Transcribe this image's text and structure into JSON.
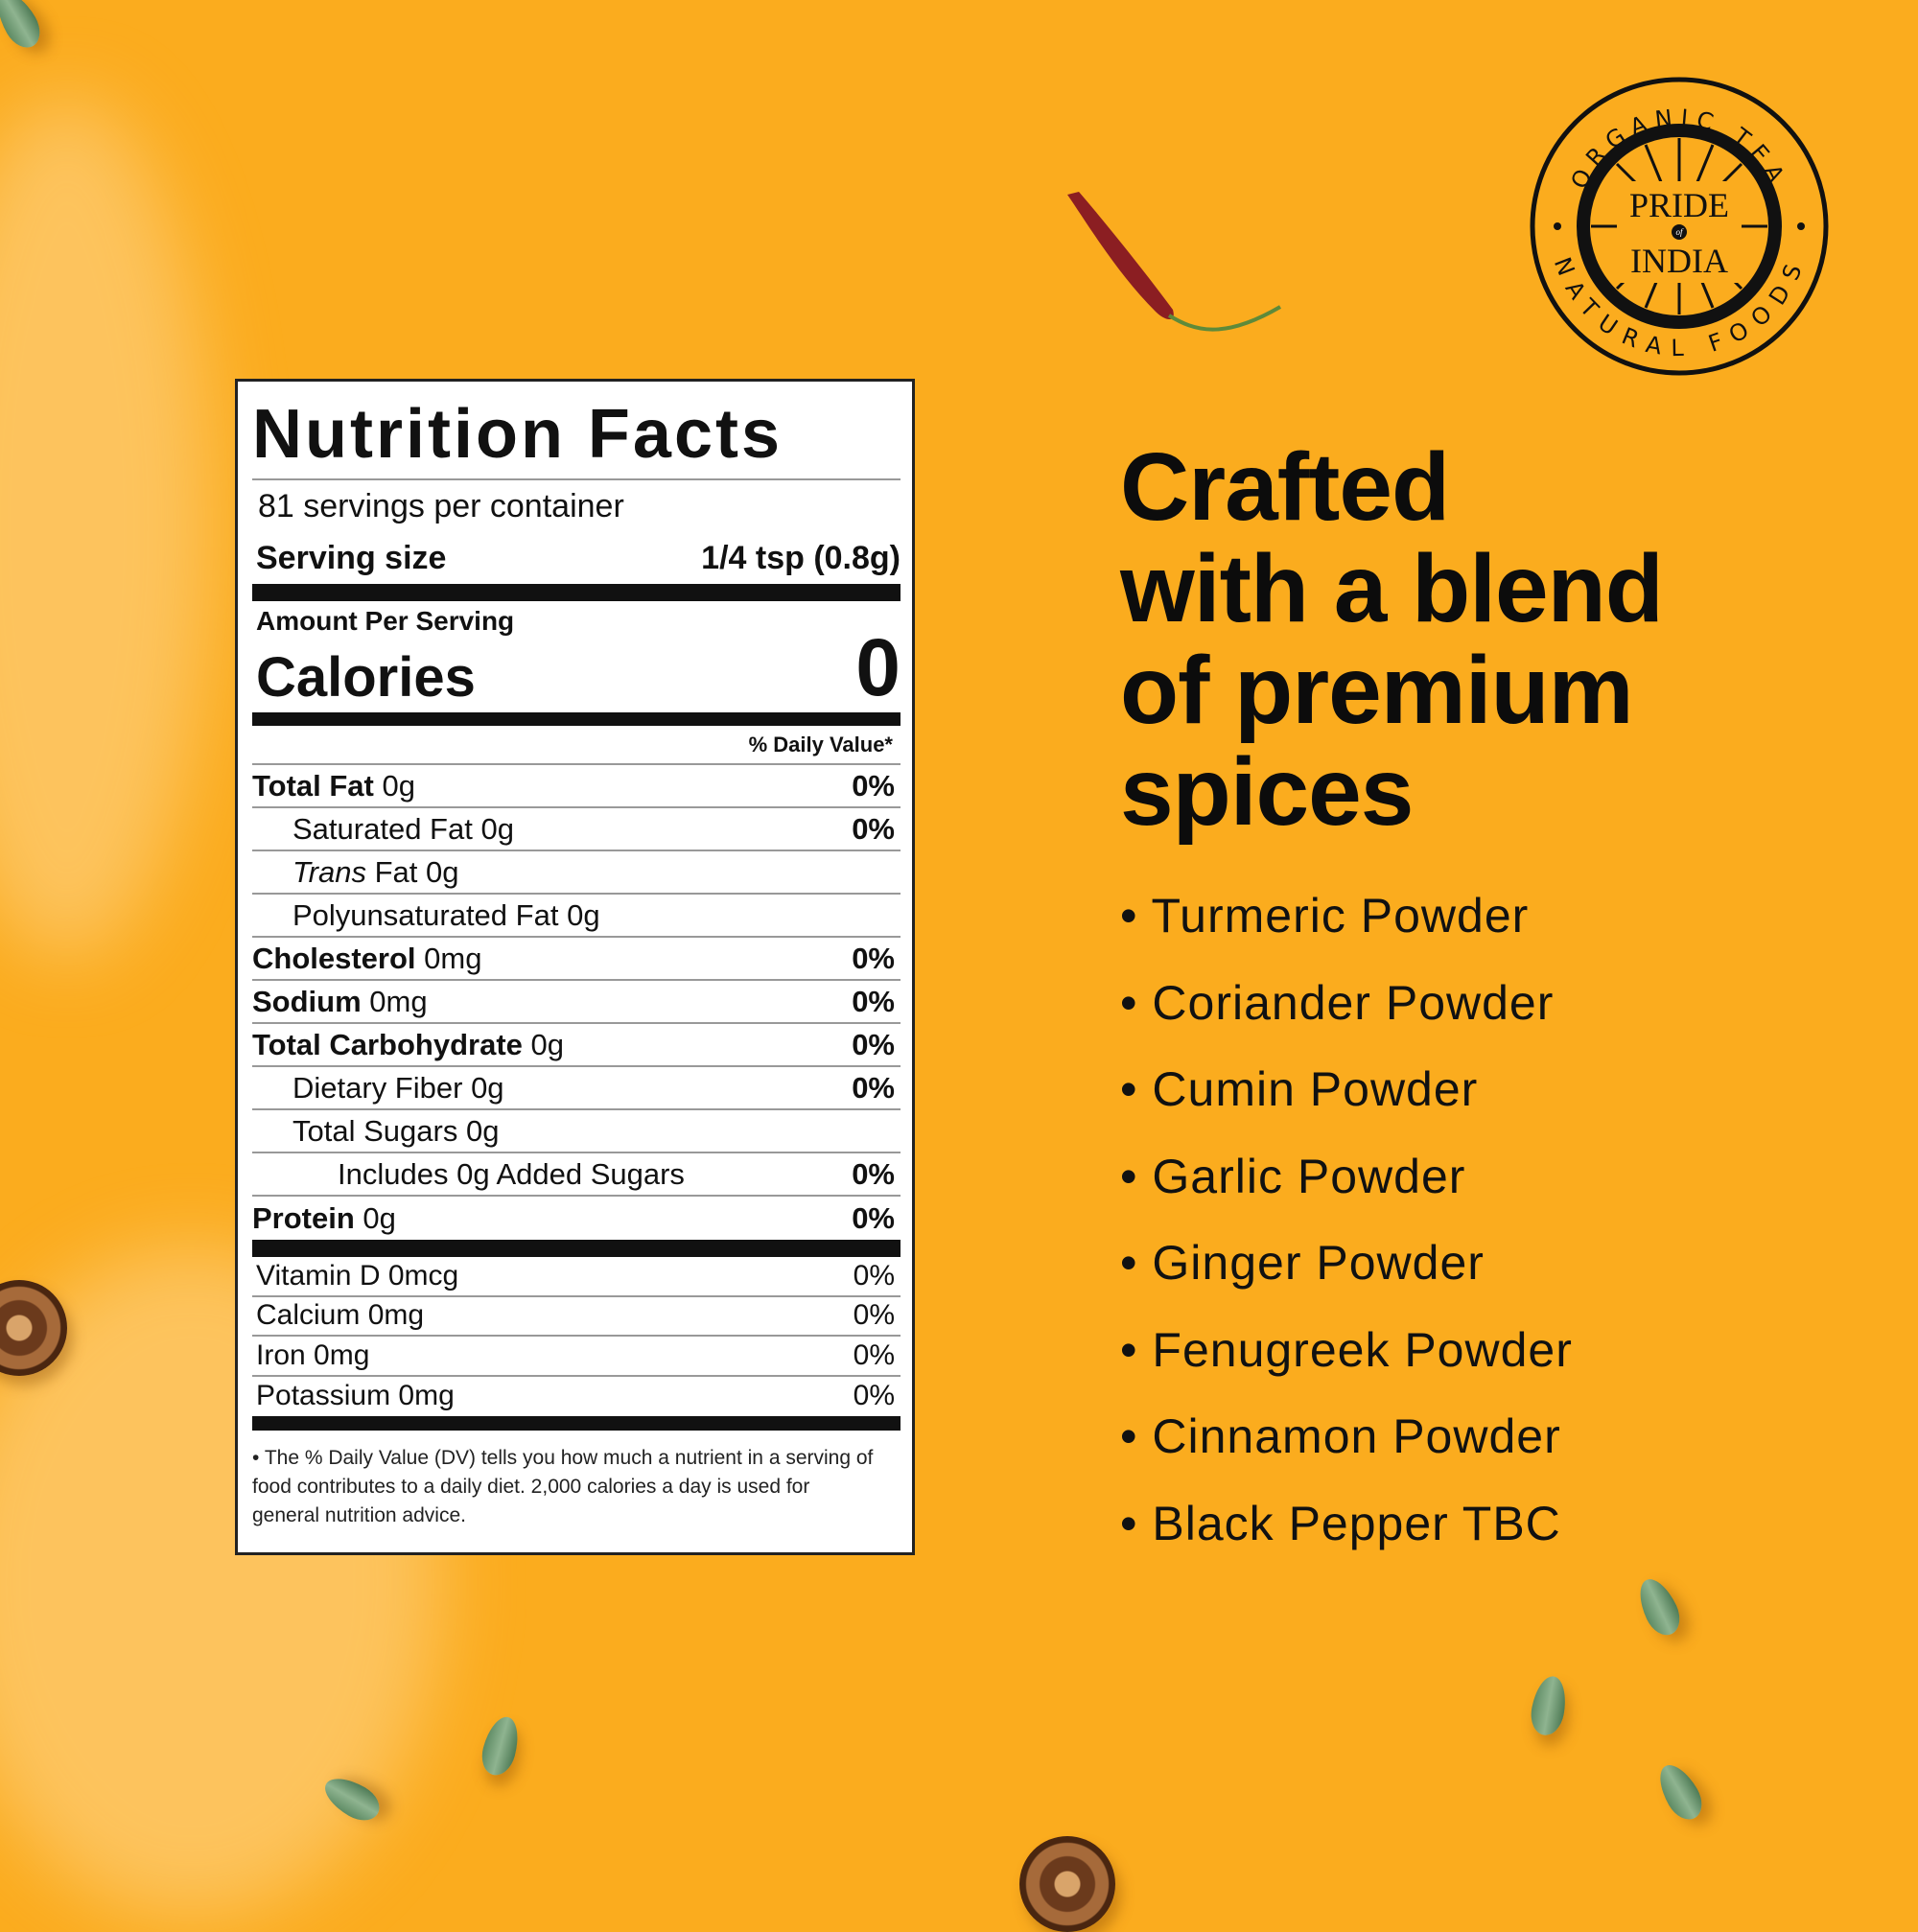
{
  "logo": {
    "top_text": "ORGANIC TEA",
    "bottom_text": "NATURAL FOODS",
    "brand_line1": "PRIDE",
    "brand_of": "of",
    "brand_line2": "INDIA"
  },
  "nutrition": {
    "title": "Nutrition Facts",
    "servings": "81 servings per container",
    "serving_size_label": "Serving size",
    "serving_size_value": "1/4 tsp (0.8g)",
    "amount_per_serving": "Amount Per Serving",
    "calories_label": "Calories",
    "calories_value": "0",
    "dv_header": "% Daily Value*",
    "nutrients": [
      {
        "name": "Total Fat",
        "amount": "0g",
        "dv": "0%"
      },
      {
        "name": "Saturated Fat",
        "amount": "0g",
        "dv": "0%"
      },
      {
        "name": "Trans",
        "amount": "Fat 0g",
        "dv": ""
      },
      {
        "name": "Polyunsaturated Fat",
        "amount": "0g",
        "dv": ""
      },
      {
        "name": "Cholesterol",
        "amount": "0mg",
        "dv": "0%"
      },
      {
        "name": "Sodium",
        "amount": "0mg",
        "dv": "0%"
      },
      {
        "name": "Total Carbohydrate",
        "amount": "0g",
        "dv": "0%"
      },
      {
        "name": "Dietary Fiber",
        "amount": "0g",
        "dv": "0%"
      },
      {
        "name": "Total Sugars",
        "amount": "0g",
        "dv": ""
      },
      {
        "name": "Includes 0g Added Sugars",
        "amount": "",
        "dv": "0%"
      },
      {
        "name": "Protein",
        "amount": "0g",
        "dv": "0%"
      }
    ],
    "vitamins": [
      {
        "name": "Vitamin D 0mcg",
        "dv": "0%"
      },
      {
        "name": "Calcium 0mg",
        "dv": "0%"
      },
      {
        "name": "Iron 0mg",
        "dv": "0%"
      },
      {
        "name": "Potassium 0mg",
        "dv": "0%"
      }
    ],
    "footnote": "The % Daily Value (DV) tells you how much a nutrient in a serving of food contributes to a daily diet. 2,000 calories a day is used for general nutrition advice."
  },
  "heading": [
    "Crafted",
    "with a blend",
    "of premium",
    "spices"
  ],
  "spices": [
    "Turmeric Powder",
    "Coriander Powder",
    "Cumin Powder",
    "Garlic Powder",
    "Ginger Powder",
    "Fenugreek Powder",
    "Cinnamon Powder",
    "Black Pepper TBC"
  ],
  "colors": {
    "background": "#fbac1e",
    "text": "#0c0c0c"
  }
}
